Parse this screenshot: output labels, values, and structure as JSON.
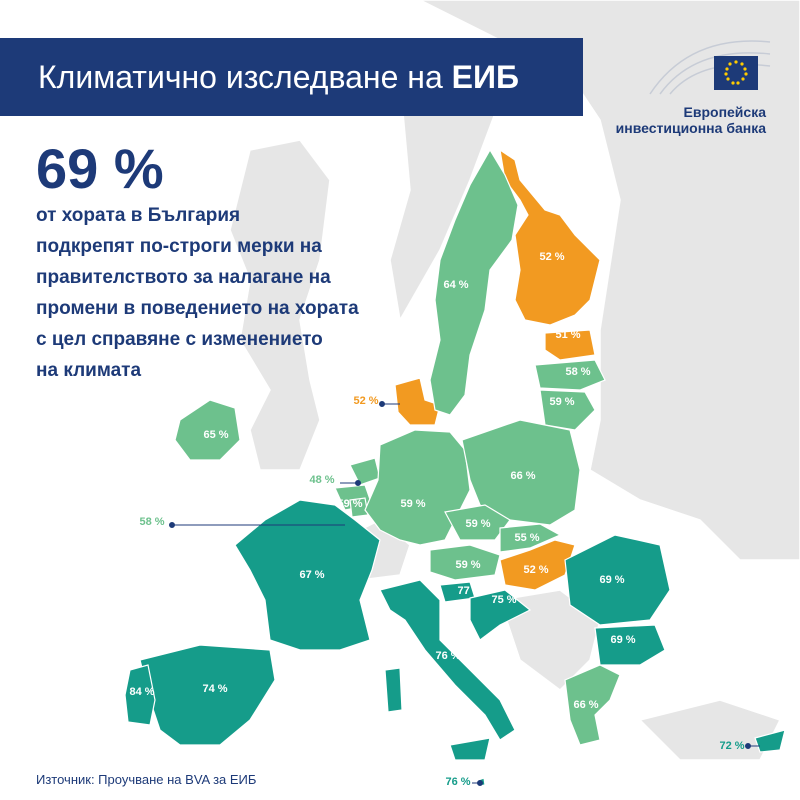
{
  "header": {
    "title_regular": "Климатично изследване на ",
    "title_bold": "ЕИБ"
  },
  "logo": {
    "line1": "Европейска",
    "line2": "инвестиционна банка",
    "icon": "eu-flag-icon"
  },
  "headline": {
    "value": "69 %",
    "lines": [
      "от хората в България",
      "подкрепят по-строги мерки на",
      "правителството за налагане на",
      "промени в поведението на хората",
      "с цел справяне с изменението",
      "на климата"
    ]
  },
  "source": "Източник: Проучване на BVA за ЕИБ",
  "colors": {
    "navy": "#1d3a78",
    "dark_green": "#159c8a",
    "light_green": "#6dc18d",
    "orange": "#f29a21",
    "background_land": "#e6e6e6"
  },
  "map_labels": [
    {
      "id": "finland",
      "text": "52 %"
    },
    {
      "id": "sweden",
      "text": "64 %"
    },
    {
      "id": "estonia",
      "text": "51 %"
    },
    {
      "id": "latvia",
      "text": "58 %"
    },
    {
      "id": "lithuania",
      "text": "59 %"
    },
    {
      "id": "denmark",
      "text": "52 %"
    },
    {
      "id": "ireland",
      "text": "65 %"
    },
    {
      "id": "netherlands",
      "text": "48 %"
    },
    {
      "id": "belgium",
      "text": "58 %"
    },
    {
      "id": "luxembourg",
      "text": "59 %"
    },
    {
      "id": "germany",
      "text": "59 %"
    },
    {
      "id": "poland",
      "text": "66 %"
    },
    {
      "id": "czechia",
      "text": "59 %"
    },
    {
      "id": "slovakia",
      "text": "55 %"
    },
    {
      "id": "austria",
      "text": "59 %"
    },
    {
      "id": "hungary",
      "text": "52 %"
    },
    {
      "id": "slovenia",
      "text": "77 %"
    },
    {
      "id": "croatia",
      "text": "75 %"
    },
    {
      "id": "france",
      "text": "67 %"
    },
    {
      "id": "romania",
      "text": "69 %"
    },
    {
      "id": "bulgaria",
      "text": "69 %"
    },
    {
      "id": "italy",
      "text": "76 %"
    },
    {
      "id": "spain",
      "text": "74 %"
    },
    {
      "id": "portugal",
      "text": "84 %"
    },
    {
      "id": "greece",
      "text": "66 %"
    },
    {
      "id": "cyprus",
      "text": "72 %"
    },
    {
      "id": "malta",
      "text": "76 %"
    }
  ]
}
